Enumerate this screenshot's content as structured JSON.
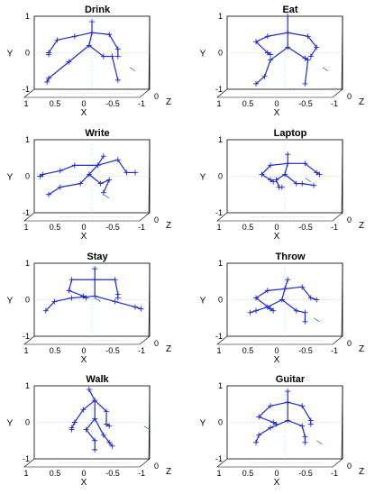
{
  "chart_data": [
    {
      "type": "scatter",
      "title": "Drink",
      "xlabel": "X",
      "ylabel": "Y",
      "zlabel": "Z",
      "xlim": [
        1,
        -1
      ],
      "ylim": [
        -1,
        1
      ],
      "x_ticks": [
        "1",
        "0.5",
        "0",
        "-0.5",
        "-1"
      ],
      "y_ticks": [
        "1",
        "0",
        "-1"
      ],
      "z_tick": "0",
      "joints": [
        [
          0.0,
          0.85
        ],
        [
          0.0,
          0.55
        ],
        [
          -0.3,
          0.5
        ],
        [
          -0.45,
          0.1
        ],
        [
          -0.45,
          -0.1
        ],
        [
          0.3,
          0.45
        ],
        [
          0.6,
          0.35
        ],
        [
          0.75,
          0.0
        ],
        [
          0.75,
          -0.05
        ],
        [
          0.05,
          0.2
        ],
        [
          -0.2,
          -0.1
        ],
        [
          -0.35,
          -0.1
        ],
        [
          -0.45,
          -0.75
        ],
        [
          0.4,
          -0.25
        ],
        [
          0.75,
          -0.7
        ],
        [
          0.78,
          -0.8
        ],
        [
          -0.7,
          -0.45
        ]
      ],
      "bones": [
        [
          0,
          1
        ],
        [
          1,
          2
        ],
        [
          2,
          3
        ],
        [
          3,
          4
        ],
        [
          1,
          5
        ],
        [
          5,
          6
        ],
        [
          6,
          7
        ],
        [
          7,
          8
        ],
        [
          1,
          9
        ],
        [
          9,
          10
        ],
        [
          10,
          11
        ],
        [
          11,
          12
        ],
        [
          9,
          13
        ],
        [
          13,
          14
        ],
        [
          14,
          15
        ]
      ]
    },
    {
      "type": "scatter",
      "title": "Eat",
      "xlabel": "X",
      "ylabel": "Y",
      "zlabel": "Z",
      "xlim": [
        1,
        -1
      ],
      "ylim": [
        -1,
        1
      ],
      "x_ticks": [
        "1",
        "0.5",
        "0",
        "-0.5",
        "-1"
      ],
      "y_ticks": [
        "1",
        "0",
        "-1"
      ],
      "z_tick": "0",
      "joints": [
        [
          -0.05,
          1.0
        ],
        [
          -0.05,
          0.55
        ],
        [
          -0.4,
          0.45
        ],
        [
          -0.55,
          0.15
        ],
        [
          -0.45,
          -0.1
        ],
        [
          0.3,
          0.45
        ],
        [
          0.5,
          0.3
        ],
        [
          0.3,
          0.0
        ],
        [
          0.25,
          -0.05
        ],
        [
          -0.05,
          0.15
        ],
        [
          -0.35,
          -0.15
        ],
        [
          -0.4,
          -0.2
        ],
        [
          -0.35,
          -0.85
        ],
        [
          0.25,
          -0.2
        ],
        [
          0.35,
          -0.65
        ],
        [
          0.5,
          -0.85
        ],
        [
          -0.7,
          -0.45
        ]
      ],
      "bones": [
        [
          0,
          1
        ],
        [
          1,
          2
        ],
        [
          2,
          3
        ],
        [
          3,
          4
        ],
        [
          1,
          5
        ],
        [
          5,
          6
        ],
        [
          6,
          7
        ],
        [
          7,
          8
        ],
        [
          1,
          9
        ],
        [
          9,
          10
        ],
        [
          10,
          11
        ],
        [
          11,
          12
        ],
        [
          9,
          13
        ],
        [
          13,
          14
        ],
        [
          14,
          15
        ]
      ]
    },
    {
      "type": "scatter",
      "title": "Write",
      "xlabel": "X",
      "ylabel": "Y",
      "zlabel": "Z",
      "xlim": [
        1,
        -1
      ],
      "ylim": [
        -1,
        1
      ],
      "x_ticks": [
        "1",
        "0.5",
        "0",
        "-0.5",
        "-1"
      ],
      "y_ticks": [
        "1",
        "0",
        "-1"
      ],
      "z_tick": "0",
      "joints": [
        [
          -0.2,
          0.55
        ],
        [
          -0.1,
          0.3
        ],
        [
          -0.45,
          0.45
        ],
        [
          -0.6,
          0.1
        ],
        [
          -0.75,
          0.1
        ],
        [
          0.3,
          0.3
        ],
        [
          0.55,
          0.15
        ],
        [
          0.85,
          0.05
        ],
        [
          0.9,
          0.0
        ],
        [
          0.05,
          0.05
        ],
        [
          -0.15,
          -0.2
        ],
        [
          -0.3,
          -0.1
        ],
        [
          -0.2,
          -0.45
        ],
        [
          0.2,
          -0.2
        ],
        [
          0.55,
          -0.3
        ],
        [
          0.75,
          -0.5
        ],
        [
          -0.25,
          -0.55
        ]
      ],
      "bones": [
        [
          0,
          1
        ],
        [
          1,
          2
        ],
        [
          2,
          3
        ],
        [
          3,
          4
        ],
        [
          1,
          5
        ],
        [
          5,
          6
        ],
        [
          6,
          7
        ],
        [
          7,
          8
        ],
        [
          1,
          9
        ],
        [
          9,
          10
        ],
        [
          10,
          11
        ],
        [
          11,
          12
        ],
        [
          9,
          13
        ],
        [
          13,
          14
        ],
        [
          14,
          15
        ]
      ]
    },
    {
      "type": "scatter",
      "title": "Laptop",
      "xlabel": "X",
      "ylabel": "Y",
      "zlabel": "Z",
      "xlim": [
        1,
        -1
      ],
      "ylim": [
        -1,
        1
      ],
      "x_ticks": [
        "1",
        "0.5",
        "0",
        "-0.5",
        "-1"
      ],
      "y_ticks": [
        "1",
        "0",
        "-1"
      ],
      "z_tick": "0",
      "joints": [
        [
          -0.05,
          0.6
        ],
        [
          -0.05,
          0.35
        ],
        [
          -0.35,
          0.35
        ],
        [
          -0.55,
          0.1
        ],
        [
          -0.6,
          0.05
        ],
        [
          0.25,
          0.3
        ],
        [
          0.4,
          0.05
        ],
        [
          0.25,
          -0.1
        ],
        [
          0.2,
          -0.15
        ],
        [
          0.0,
          0.05
        ],
        [
          -0.2,
          -0.2
        ],
        [
          -0.3,
          -0.2
        ],
        [
          -0.5,
          -0.25
        ],
        [
          0.15,
          -0.1
        ],
        [
          0.1,
          -0.3
        ],
        [
          0.05,
          -0.3
        ],
        [
          -0.4,
          -0.1
        ]
      ],
      "bones": [
        [
          0,
          1
        ],
        [
          1,
          2
        ],
        [
          2,
          3
        ],
        [
          3,
          4
        ],
        [
          1,
          5
        ],
        [
          5,
          6
        ],
        [
          6,
          7
        ],
        [
          7,
          8
        ],
        [
          1,
          9
        ],
        [
          9,
          10
        ],
        [
          10,
          11
        ],
        [
          11,
          12
        ],
        [
          9,
          13
        ],
        [
          13,
          14
        ],
        [
          14,
          15
        ]
      ]
    },
    {
      "type": "scatter",
      "title": "Stay",
      "xlabel": "X",
      "ylabel": "Y",
      "zlabel": "Z",
      "xlim": [
        1,
        -1
      ],
      "ylim": [
        -1,
        1
      ],
      "x_ticks": [
        "1",
        "0.5",
        "0",
        "-0.5",
        "-1"
      ],
      "y_ticks": [
        "1",
        "0",
        "-1"
      ],
      "z_tick": "0",
      "joints": [
        [
          -0.05,
          0.85
        ],
        [
          -0.05,
          0.55
        ],
        [
          -0.4,
          0.55
        ],
        [
          -0.45,
          0.15
        ],
        [
          -0.45,
          0.05
        ],
        [
          0.35,
          0.55
        ],
        [
          0.4,
          0.25
        ],
        [
          0.15,
          0.1
        ],
        [
          0.1,
          0.05
        ],
        [
          -0.05,
          0.1
        ],
        [
          -0.4,
          -0.05
        ],
        [
          -0.75,
          -0.2
        ],
        [
          -0.85,
          -0.25
        ],
        [
          0.35,
          0.05
        ],
        [
          0.65,
          -0.05
        ],
        [
          0.8,
          -0.3
        ],
        [
          -0.1,
          0.0
        ]
      ],
      "bones": [
        [
          0,
          1
        ],
        [
          1,
          2
        ],
        [
          2,
          3
        ],
        [
          3,
          4
        ],
        [
          1,
          5
        ],
        [
          5,
          6
        ],
        [
          6,
          7
        ],
        [
          7,
          8
        ],
        [
          1,
          9
        ],
        [
          9,
          10
        ],
        [
          10,
          11
        ],
        [
          11,
          12
        ],
        [
          9,
          13
        ],
        [
          13,
          14
        ],
        [
          14,
          15
        ]
      ]
    },
    {
      "type": "scatter",
      "title": "Throw",
      "xlabel": "X",
      "ylabel": "Y",
      "zlabel": "Z",
      "xlim": [
        1,
        -1
      ],
      "ylim": [
        -1,
        1
      ],
      "x_ticks": [
        "1",
        "0.5",
        "0",
        "-0.5",
        "-1"
      ],
      "y_ticks": [
        "1",
        "0",
        "-1"
      ],
      "z_tick": "0",
      "joints": [
        [
          -0.05,
          0.55
        ],
        [
          0.0,
          0.3
        ],
        [
          -0.3,
          0.35
        ],
        [
          -0.45,
          0.05
        ],
        [
          -0.55,
          0.0
        ],
        [
          0.3,
          0.25
        ],
        [
          0.5,
          0.05
        ],
        [
          0.25,
          -0.25
        ],
        [
          0.2,
          -0.3
        ],
        [
          0.05,
          0.0
        ],
        [
          -0.2,
          -0.3
        ],
        [
          -0.35,
          -0.35
        ],
        [
          -0.35,
          -0.6
        ],
        [
          0.3,
          -0.2
        ],
        [
          0.5,
          -0.3
        ],
        [
          0.6,
          -0.35
        ],
        [
          -0.55,
          -0.55
        ]
      ],
      "bones": [
        [
          0,
          1
        ],
        [
          1,
          2
        ],
        [
          2,
          3
        ],
        [
          3,
          4
        ],
        [
          1,
          5
        ],
        [
          5,
          6
        ],
        [
          6,
          7
        ],
        [
          7,
          8
        ],
        [
          1,
          9
        ],
        [
          9,
          10
        ],
        [
          10,
          11
        ],
        [
          11,
          12
        ],
        [
          9,
          13
        ],
        [
          13,
          14
        ],
        [
          14,
          15
        ]
      ]
    },
    {
      "type": "scatter",
      "title": "Walk",
      "xlabel": "X",
      "ylabel": "Y",
      "zlabel": "Z",
      "xlim": [
        1,
        -1
      ],
      "ylim": [
        -1,
        1
      ],
      "x_ticks": [
        "1",
        "0.5",
        "0",
        "-0.5",
        "-1"
      ],
      "y_ticks": [
        "1",
        "0",
        "-1"
      ],
      "z_tick": "0",
      "joints": [
        [
          0.05,
          0.9
        ],
        [
          -0.05,
          0.6
        ],
        [
          -0.25,
          0.3
        ],
        [
          -0.25,
          -0.05
        ],
        [
          -0.3,
          -0.1
        ],
        [
          0.15,
          0.35
        ],
        [
          0.3,
          0.0
        ],
        [
          0.35,
          -0.15
        ],
        [
          0.35,
          -0.2
        ],
        [
          -0.05,
          0.1
        ],
        [
          -0.2,
          -0.35
        ],
        [
          -0.3,
          -0.55
        ],
        [
          -0.35,
          -0.65
        ],
        [
          0.1,
          -0.2
        ],
        [
          -0.05,
          -0.5
        ],
        [
          -0.05,
          -0.75
        ],
        [
          -0.95,
          -0.15
        ]
      ],
      "bones": [
        [
          0,
          1
        ],
        [
          1,
          2
        ],
        [
          2,
          3
        ],
        [
          3,
          4
        ],
        [
          1,
          5
        ],
        [
          5,
          6
        ],
        [
          6,
          7
        ],
        [
          7,
          8
        ],
        [
          1,
          9
        ],
        [
          9,
          10
        ],
        [
          10,
          11
        ],
        [
          11,
          12
        ],
        [
          9,
          13
        ],
        [
          13,
          14
        ],
        [
          14,
          15
        ]
      ]
    },
    {
      "type": "scatter",
      "title": "Guitar",
      "xlabel": "X",
      "ylabel": "Y",
      "zlabel": "Z",
      "xlim": [
        1,
        -1
      ],
      "ylim": [
        -1,
        1
      ],
      "x_ticks": [
        "1",
        "0.5",
        "0",
        "-0.5",
        "-1"
      ],
      "y_ticks": [
        "1",
        "0",
        "-1"
      ],
      "z_tick": "0",
      "joints": [
        [
          -0.05,
          0.85
        ],
        [
          -0.05,
          0.55
        ],
        [
          -0.3,
          0.45
        ],
        [
          -0.45,
          0.05
        ],
        [
          -0.45,
          -0.05
        ],
        [
          0.25,
          0.45
        ],
        [
          0.45,
          0.15
        ],
        [
          0.2,
          0.0
        ],
        [
          0.15,
          -0.05
        ],
        [
          -0.05,
          0.05
        ],
        [
          -0.3,
          -0.1
        ],
        [
          -0.35,
          -0.4
        ],
        [
          -0.35,
          -0.55
        ],
        [
          0.25,
          -0.15
        ],
        [
          0.45,
          -0.35
        ],
        [
          0.5,
          -0.55
        ],
        [
          -0.6,
          -0.55
        ]
      ],
      "bones": [
        [
          0,
          1
        ],
        [
          1,
          2
        ],
        [
          2,
          3
        ],
        [
          3,
          4
        ],
        [
          1,
          5
        ],
        [
          5,
          6
        ],
        [
          6,
          7
        ],
        [
          7,
          8
        ],
        [
          1,
          9
        ],
        [
          9,
          10
        ],
        [
          10,
          11
        ],
        [
          11,
          12
        ],
        [
          9,
          13
        ],
        [
          13,
          14
        ],
        [
          14,
          15
        ]
      ]
    }
  ]
}
